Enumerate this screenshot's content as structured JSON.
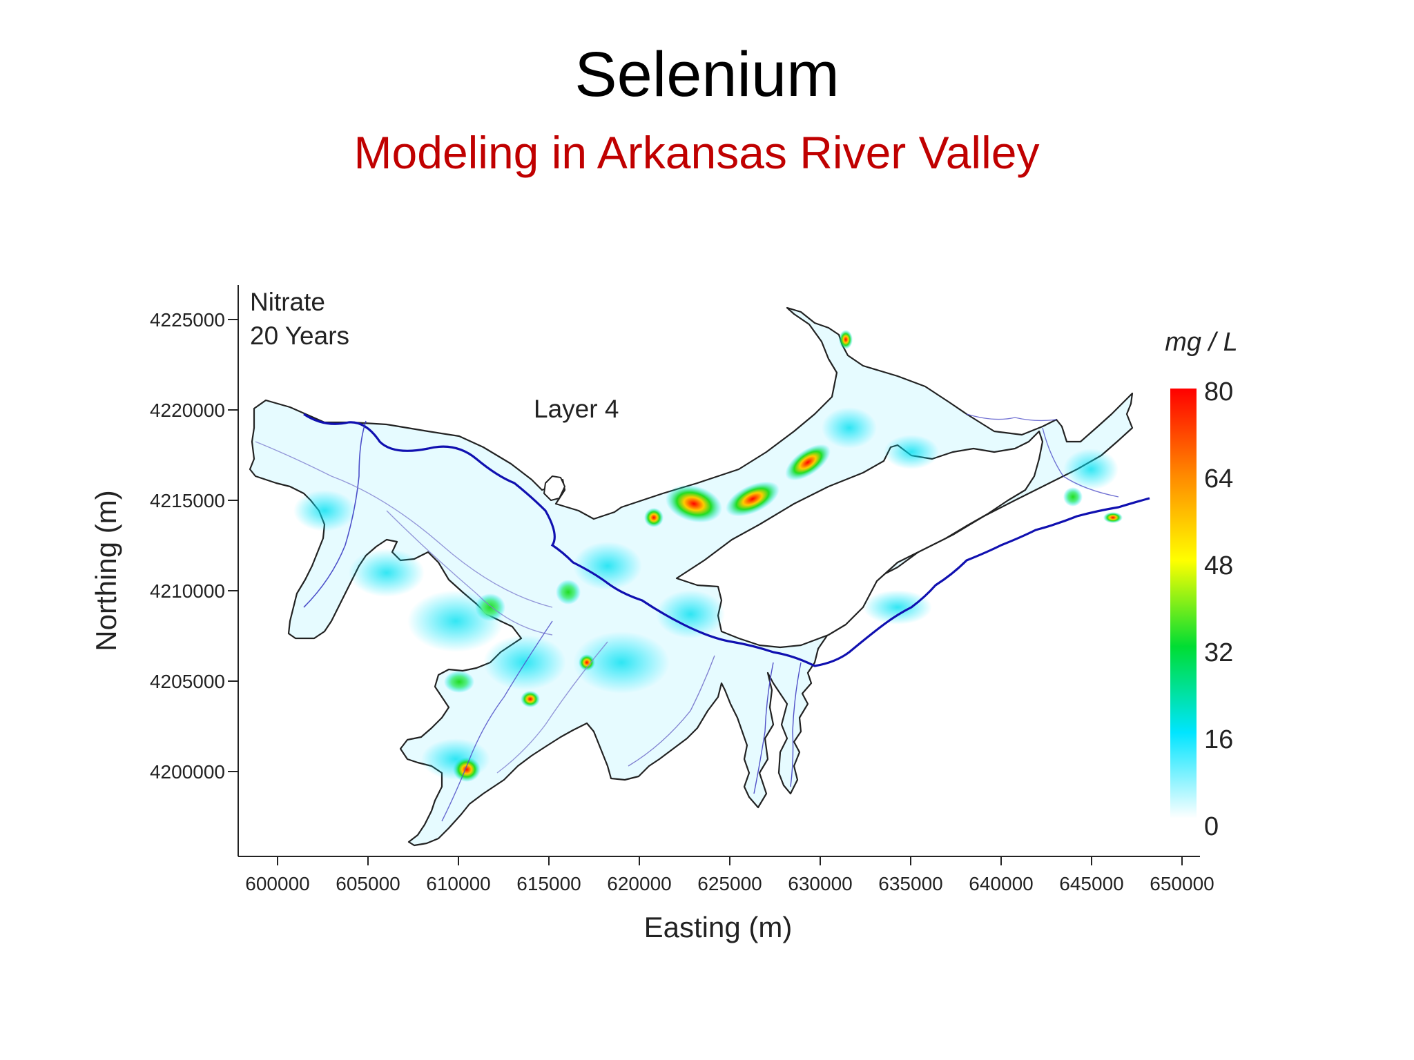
{
  "slide": {
    "title": "Selenium",
    "subtitle": "Modeling in Arkansas River Valley",
    "title_color": "#000000",
    "subtitle_color": "#c00000"
  },
  "map": {
    "annotation_line1": "Nitrate",
    "annotation_line2": "20 Years",
    "layer_label": "Layer 4",
    "xlabel": "Easting (m)",
    "ylabel": "Northing (m)",
    "x_ticks": [
      "600000",
      "605000",
      "610000",
      "615000",
      "620000",
      "625000",
      "630000",
      "635000",
      "640000",
      "645000",
      "650000"
    ],
    "y_ticks": [
      "4225000",
      "4220000",
      "4215000",
      "4210000",
      "4205000",
      "4200000"
    ],
    "colorbar": {
      "unit": "mg / L",
      "ticks": [
        "80",
        "64",
        "48",
        "32",
        "16",
        "0"
      ],
      "colors": [
        "#ff0000",
        "#ff8c00",
        "#ffff00",
        "#00e000",
        "#00e5ff",
        "#ffffff"
      ]
    },
    "river_color": "#1010b0"
  }
}
